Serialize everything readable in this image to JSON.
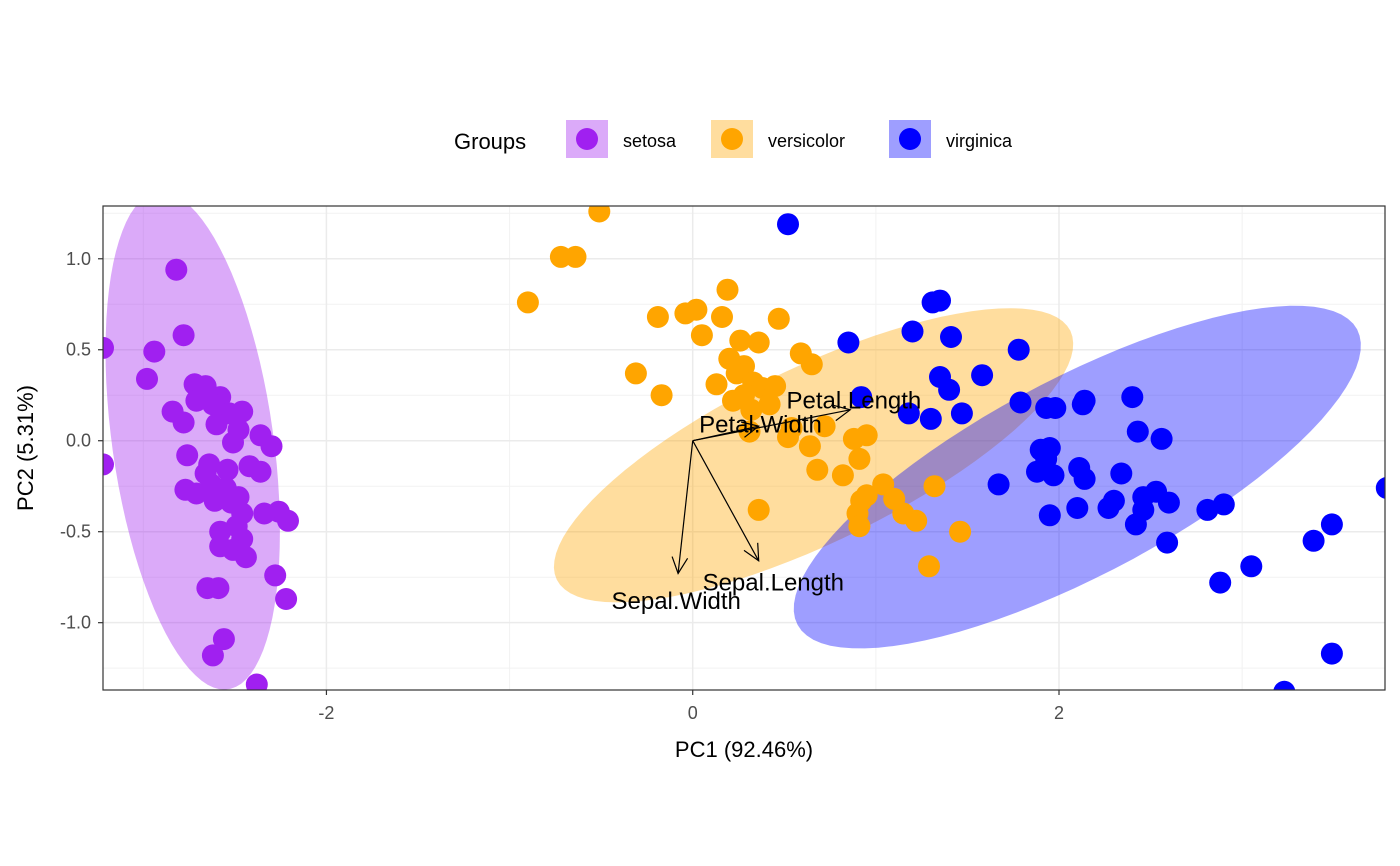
{
  "chart_data": {
    "type": "scatter",
    "xlabel": "PC1 (92.46%)",
    "ylabel": "PC2 (5.31%)",
    "xlim": [
      -3.22,
      3.78
    ],
    "ylim": [
      -1.37,
      1.29
    ],
    "x_ticks": [
      -2,
      0,
      2
    ],
    "x_tick_labels": [
      "-2",
      "0",
      "2"
    ],
    "y_ticks": [
      -1.0,
      -0.5,
      0.0,
      0.5,
      1.0
    ],
    "y_tick_labels": [
      "-1.0",
      "-0.5",
      "0.0",
      "0.5",
      "1.0"
    ],
    "grid": true,
    "legend": {
      "title": "Groups",
      "position": "top"
    },
    "series": [
      {
        "name": "setosa",
        "color": "#a020f0",
        "ellipse": {
          "cx": -2.73,
          "cy": 0.0,
          "rx": 0.44,
          "ry": 1.38,
          "angle_deg": 8,
          "fill": "#cd97f6"
        },
        "points": [
          [
            -2.82,
            0.94
          ],
          [
            -2.78,
            0.58
          ],
          [
            -2.94,
            0.49
          ],
          [
            -3.22,
            0.51
          ],
          [
            -2.98,
            0.34
          ],
          [
            -2.72,
            0.31
          ],
          [
            -2.66,
            0.3
          ],
          [
            -2.58,
            0.24
          ],
          [
            -2.71,
            0.22
          ],
          [
            -2.62,
            0.2
          ],
          [
            -2.46,
            0.16
          ],
          [
            -2.84,
            0.16
          ],
          [
            -2.53,
            0.15
          ],
          [
            -2.78,
            0.1
          ],
          [
            -2.6,
            0.09
          ],
          [
            -2.48,
            0.06
          ],
          [
            -2.36,
            0.03
          ],
          [
            -2.51,
            -0.01
          ],
          [
            -2.3,
            -0.03
          ],
          [
            -2.76,
            -0.08
          ],
          [
            -3.22,
            -0.13
          ],
          [
            -2.64,
            -0.13
          ],
          [
            -2.42,
            -0.14
          ],
          [
            -2.54,
            -0.16
          ],
          [
            -2.36,
            -0.17
          ],
          [
            -2.66,
            -0.18
          ],
          [
            -2.63,
            -0.24
          ],
          [
            -2.55,
            -0.26
          ],
          [
            -2.77,
            -0.27
          ],
          [
            -2.71,
            -0.29
          ],
          [
            -2.48,
            -0.31
          ],
          [
            -2.52,
            -0.34
          ],
          [
            -2.61,
            -0.33
          ],
          [
            -2.46,
            -0.4
          ],
          [
            -2.26,
            -0.39
          ],
          [
            -2.34,
            -0.4
          ],
          [
            -2.21,
            -0.44
          ],
          [
            -2.49,
            -0.47
          ],
          [
            -2.58,
            -0.5
          ],
          [
            -2.46,
            -0.54
          ],
          [
            -2.58,
            -0.58
          ],
          [
            -2.51,
            -0.6
          ],
          [
            -2.44,
            -0.64
          ],
          [
            -2.28,
            -0.74
          ],
          [
            -2.59,
            -0.81
          ],
          [
            -2.22,
            -0.87
          ],
          [
            -2.56,
            -1.09
          ],
          [
            -2.62,
            -1.18
          ],
          [
            -2.38,
            -1.34
          ],
          [
            -2.65,
            -0.81
          ]
        ]
      },
      {
        "name": "versicolor",
        "color": "#ffa500",
        "ellipse": {
          "cx": 0.66,
          "cy": -0.08,
          "rx": 1.56,
          "ry": 0.48,
          "angle_deg": 26,
          "fill": "#fed996"
        },
        "points": [
          [
            -0.51,
            1.26
          ],
          [
            -0.72,
            1.01
          ],
          [
            -0.64,
            1.01
          ],
          [
            -0.9,
            0.76
          ],
          [
            0.19,
            0.83
          ],
          [
            -0.19,
            0.68
          ],
          [
            -0.04,
            0.7
          ],
          [
            0.02,
            0.72
          ],
          [
            0.16,
            0.68
          ],
          [
            0.47,
            0.67
          ],
          [
            0.05,
            0.58
          ],
          [
            0.26,
            0.55
          ],
          [
            0.36,
            0.54
          ],
          [
            0.2,
            0.45
          ],
          [
            0.28,
            0.41
          ],
          [
            -0.31,
            0.37
          ],
          [
            0.24,
            0.37
          ],
          [
            0.33,
            0.32
          ],
          [
            0.13,
            0.31
          ],
          [
            0.38,
            0.29
          ],
          [
            0.45,
            0.3
          ],
          [
            0.28,
            0.25
          ],
          [
            0.22,
            0.22
          ],
          [
            0.42,
            0.2
          ],
          [
            0.32,
            0.17
          ],
          [
            0.54,
            0.07
          ],
          [
            0.72,
            0.08
          ],
          [
            0.95,
            0.03
          ],
          [
            0.64,
            -0.03
          ],
          [
            0.88,
            0.01
          ],
          [
            -0.17,
            0.25
          ],
          [
            0.31,
            0.05
          ],
          [
            0.52,
            0.02
          ],
          [
            0.91,
            -0.1
          ],
          [
            0.68,
            -0.16
          ],
          [
            0.82,
            -0.19
          ],
          [
            1.04,
            -0.24
          ],
          [
            0.95,
            -0.3
          ],
          [
            1.1,
            -0.32
          ],
          [
            0.92,
            -0.33
          ],
          [
            0.9,
            -0.4
          ],
          [
            1.15,
            -0.4
          ],
          [
            1.32,
            -0.25
          ],
          [
            1.22,
            -0.44
          ],
          [
            0.91,
            -0.47
          ],
          [
            1.46,
            -0.5
          ],
          [
            1.29,
            -0.69
          ],
          [
            0.59,
            0.48
          ],
          [
            0.65,
            0.42
          ],
          [
            0.36,
            -0.38
          ]
        ]
      },
      {
        "name": "virginica",
        "color": "#0000ff",
        "ellipse": {
          "cx": 2.1,
          "cy": -0.2,
          "rx": 1.73,
          "ry": 0.54,
          "angle_deg": 28,
          "fill": "#9797fa"
        },
        "points": [
          [
            0.52,
            1.19
          ],
          [
            1.31,
            0.76
          ],
          [
            1.35,
            0.77
          ],
          [
            1.2,
            0.6
          ],
          [
            1.41,
            0.57
          ],
          [
            1.78,
            0.5
          ],
          [
            1.58,
            0.36
          ],
          [
            1.4,
            0.28
          ],
          [
            1.35,
            0.35
          ],
          [
            1.79,
            0.21
          ],
          [
            1.93,
            0.18
          ],
          [
            2.13,
            0.2
          ],
          [
            2.14,
            0.22
          ],
          [
            2.4,
            0.24
          ],
          [
            1.98,
            0.18
          ],
          [
            1.18,
            0.15
          ],
          [
            1.47,
            0.15
          ],
          [
            1.3,
            0.12
          ],
          [
            2.43,
            0.05
          ],
          [
            2.56,
            0.01
          ],
          [
            1.95,
            -0.04
          ],
          [
            1.9,
            -0.05
          ],
          [
            1.93,
            -0.1
          ],
          [
            2.11,
            -0.15
          ],
          [
            2.34,
            -0.18
          ],
          [
            1.88,
            -0.17
          ],
          [
            1.97,
            -0.19
          ],
          [
            2.14,
            -0.21
          ],
          [
            2.53,
            -0.28
          ],
          [
            2.6,
            -0.34
          ],
          [
            2.3,
            -0.33
          ],
          [
            2.46,
            -0.31
          ],
          [
            2.46,
            -0.38
          ],
          [
            2.81,
            -0.38
          ],
          [
            2.9,
            -0.35
          ],
          [
            2.27,
            -0.37
          ],
          [
            1.95,
            -0.41
          ],
          [
            2.1,
            -0.37
          ],
          [
            2.42,
            -0.46
          ],
          [
            2.59,
            -0.56
          ],
          [
            3.23,
            -1.38
          ],
          [
            3.49,
            -1.17
          ],
          [
            2.88,
            -0.78
          ],
          [
            3.05,
            -0.69
          ],
          [
            3.39,
            -0.55
          ],
          [
            3.49,
            -0.46
          ],
          [
            3.79,
            -0.26
          ],
          [
            0.85,
            0.54
          ],
          [
            0.92,
            0.24
          ],
          [
            1.67,
            -0.24
          ]
        ]
      }
    ],
    "loadings": [
      {
        "name": "Petal.Length",
        "x": 0.86,
        "y": 0.17,
        "label_x": 0.88,
        "label_y": 0.22
      },
      {
        "name": "Petal.Width",
        "x": 0.36,
        "y": 0.08,
        "label_x": 0.37,
        "label_y": 0.09
      },
      {
        "name": "Sepal.Length",
        "x": 0.36,
        "y": -0.66,
        "label_x": 0.44,
        "label_y": -0.78
      },
      {
        "name": "Sepal.Width",
        "x": -0.08,
        "y": -0.73,
        "label_x": -0.09,
        "label_y": -0.88
      }
    ]
  }
}
